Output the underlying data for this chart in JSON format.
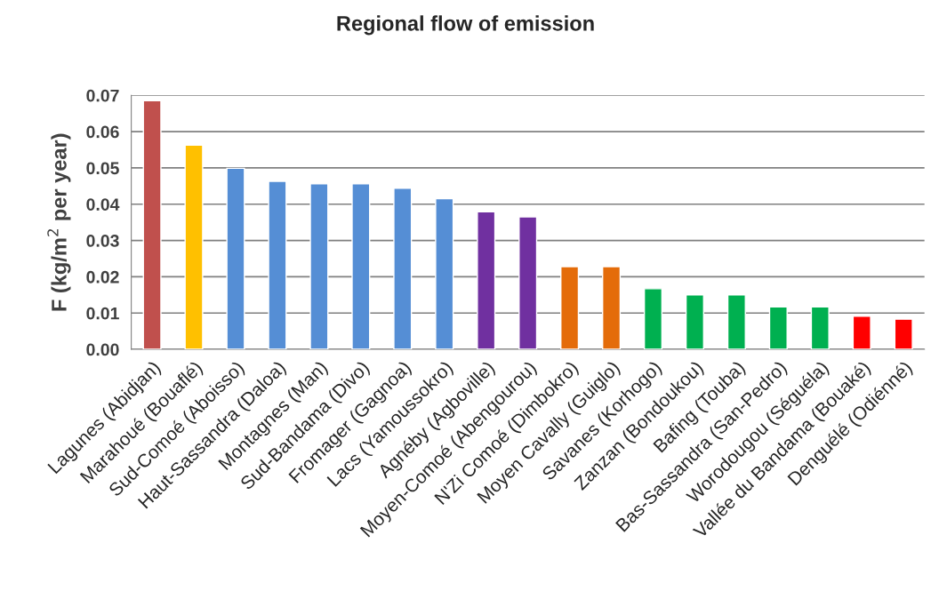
{
  "chart_data": {
    "type": "bar",
    "title": "Regional flow of emission",
    "ylabel": "F (kg/m$^{2}$ per year)",
    "categories": [
      "Lagunes (Abidjan)",
      "Marahoué (Bouaflé)",
      "Sud-Comoé (Aboisso)",
      "Haut-Sassandra (Daloa)",
      "Montagnes (Man)",
      "Sud-Bandama (Divo)",
      "Fromager (Gagnoa)",
      "Lacs (Yamoussokro)",
      "Agnéby (Agboville)",
      "Moyen-Comoé (Abengourou)",
      "N'Zi Comoé (Dimbokro)",
      "Moyen Cavally (Guiglo)",
      "Savanes (Korhogo)",
      "Zanzan (Bondoukou)",
      "Bafing (Touba)",
      "Bas-Sassandra (San-Pedro)",
      "Worodougou (Séguéla)",
      "Vallée du Bandama (Bouaké)",
      "Denguélé (Odiénné)"
    ],
    "values": [
      0.0685,
      0.0563,
      0.0499,
      0.0463,
      0.0456,
      0.0456,
      0.0444,
      0.0415,
      0.0379,
      0.0365,
      0.0228,
      0.0228,
      0.0167,
      0.015,
      0.015,
      0.0117,
      0.0117,
      0.0091,
      0.0083
    ],
    "colors": [
      "#c0504d",
      "#ffc000",
      "#558ed5",
      "#558ed5",
      "#558ed5",
      "#558ed5",
      "#558ed5",
      "#558ed5",
      "#7030a0",
      "#7030a0",
      "#e46c0a",
      "#e46c0a",
      "#00b050",
      "#00b050",
      "#00b050",
      "#00b050",
      "#00b050",
      "#ff0000",
      "#ff0000"
    ],
    "ylim": [
      0,
      0.07
    ],
    "yticks": [
      {
        "value": 0,
        "label": "0.00"
      },
      0.01,
      0.02,
      0.03,
      0.04,
      0.05,
      0.06,
      0.07
    ],
    "grid": "y",
    "legend": false
  }
}
